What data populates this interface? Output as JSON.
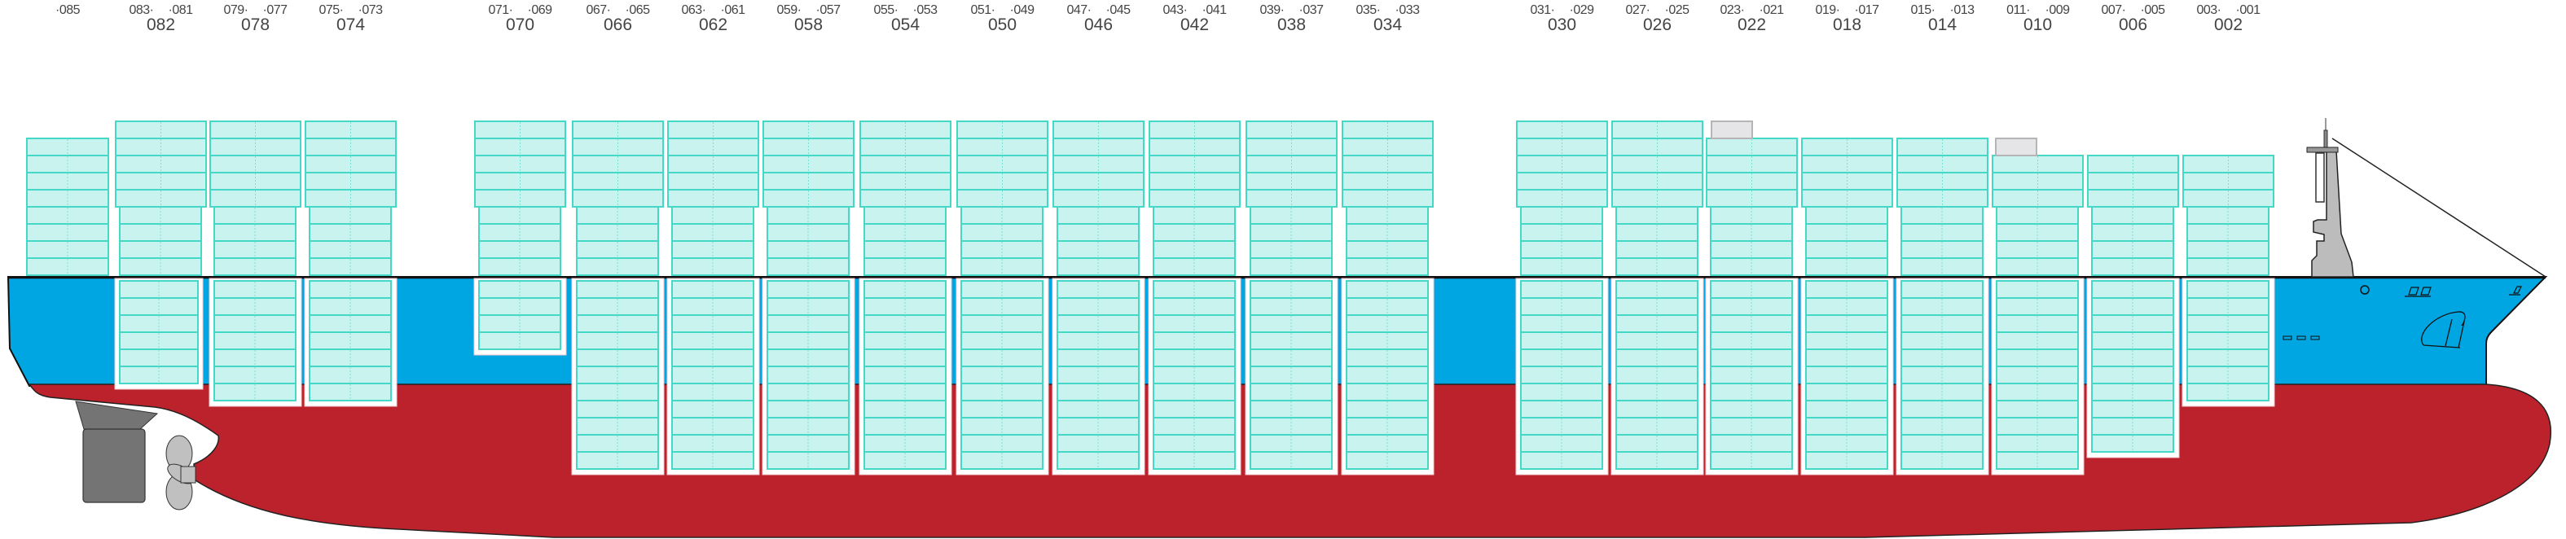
{
  "colors": {
    "hull_red": "#bb222c",
    "hull_blue": "#00a6e2",
    "container_fill": "#c9f3ee",
    "container_stroke": "#46d8c6",
    "empty_slot": "#e5e5e8",
    "superstructure": "#bcbcbc",
    "rudder": "#747474"
  },
  "bays": [
    {
      "label": "",
      "subs": [
        "·085"
      ],
      "deck_tiers": 8,
      "hold_tiers": 0
    },
    {
      "label": "082",
      "subs": [
        "083·",
        "·081"
      ],
      "deck_tiers": 9,
      "hold_tiers": 6
    },
    {
      "label": "078",
      "subs": [
        "079·",
        "·077"
      ],
      "deck_tiers": 9,
      "hold_tiers": 7
    },
    {
      "label": "074",
      "subs": [
        "075·",
        "·073"
      ],
      "deck_tiers": 9,
      "hold_tiers": 7
    },
    {
      "label": "070",
      "subs": [
        "071·",
        "·069"
      ],
      "deck_tiers": 9,
      "hold_tiers": 4
    },
    {
      "label": "066",
      "subs": [
        "067·",
        "·065"
      ],
      "deck_tiers": 9,
      "hold_tiers": 11
    },
    {
      "label": "062",
      "subs": [
        "063·",
        "·061"
      ],
      "deck_tiers": 9,
      "hold_tiers": 11
    },
    {
      "label": "058",
      "subs": [
        "059·",
        "·057"
      ],
      "deck_tiers": 9,
      "hold_tiers": 11
    },
    {
      "label": "054",
      "subs": [
        "055·",
        "·053"
      ],
      "deck_tiers": 9,
      "hold_tiers": 11
    },
    {
      "label": "050",
      "subs": [
        "051·",
        "·049"
      ],
      "deck_tiers": 9,
      "hold_tiers": 11
    },
    {
      "label": "046",
      "subs": [
        "047·",
        "·045"
      ],
      "deck_tiers": 9,
      "hold_tiers": 11
    },
    {
      "label": "042",
      "subs": [
        "043·",
        "·041"
      ],
      "deck_tiers": 9,
      "hold_tiers": 11
    },
    {
      "label": "038",
      "subs": [
        "039·",
        "·037"
      ],
      "deck_tiers": 9,
      "hold_tiers": 11
    },
    {
      "label": "034",
      "subs": [
        "035·",
        "·033"
      ],
      "deck_tiers": 9,
      "hold_tiers": 11
    },
    {
      "label": "030",
      "subs": [
        "031·",
        "·029"
      ],
      "deck_tiers": 9,
      "hold_tiers": 11
    },
    {
      "label": "026",
      "subs": [
        "027·",
        "·025"
      ],
      "deck_tiers": 9,
      "hold_tiers": 11
    },
    {
      "label": "022",
      "subs": [
        "023·",
        "·021"
      ],
      "deck_tiers": 8,
      "hold_tiers": 11
    },
    {
      "label": "018",
      "subs": [
        "019·",
        "·017"
      ],
      "deck_tiers": 8,
      "hold_tiers": 11
    },
    {
      "label": "014",
      "subs": [
        "015·",
        "·013"
      ],
      "deck_tiers": 8,
      "hold_tiers": 11
    },
    {
      "label": "010",
      "subs": [
        "011·",
        "·009"
      ],
      "deck_tiers": 7,
      "hold_tiers": 11
    },
    {
      "label": "006",
      "subs": [
        "007·",
        "·005"
      ],
      "deck_tiers": 7,
      "hold_tiers": 10
    },
    {
      "label": "002",
      "subs": [
        "003·",
        "·001"
      ],
      "deck_tiers": 7,
      "hold_tiers": 7
    }
  ]
}
